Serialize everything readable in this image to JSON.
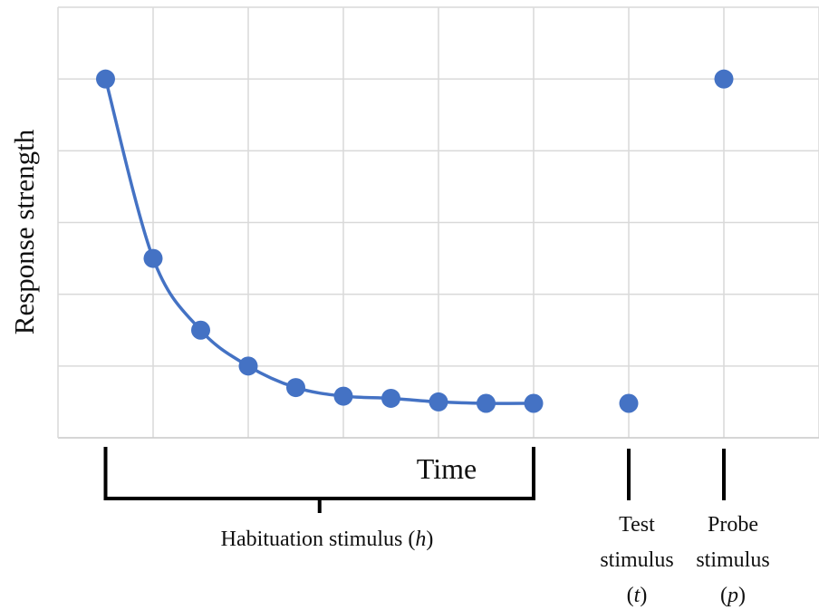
{
  "chart_data": {
    "type": "scatter",
    "title": "",
    "ylabel": "Response strength",
    "xlabel": "Time",
    "grid": true,
    "legend": "none",
    "ylim": [
      0,
      6
    ],
    "xlim": [
      0,
      8
    ],
    "series": [
      {
        "points": [
          {
            "x": 0.5,
            "y": 5.0
          },
          {
            "x": 1.0,
            "y": 2.5
          },
          {
            "x": 1.5,
            "y": 1.5
          },
          {
            "x": 2.0,
            "y": 1.0
          },
          {
            "x": 2.5,
            "y": 0.7
          },
          {
            "x": 3.0,
            "y": 0.58
          },
          {
            "x": 3.5,
            "y": 0.55
          },
          {
            "x": 4.0,
            "y": 0.5
          },
          {
            "x": 4.5,
            "y": 0.48
          },
          {
            "x": 5.0,
            "y": 0.48
          }
        ],
        "smooth_line": true
      },
      {
        "points": [
          {
            "x": 6.0,
            "y": 0.48
          },
          {
            "x": 7.0,
            "y": 5.0
          }
        ],
        "smooth_line": false
      }
    ],
    "annotations": {
      "habituation": {
        "text": "Habituation stimulus (",
        "italic": "h",
        "close": ")",
        "x_range": [
          0.5,
          5.0
        ]
      },
      "test": {
        "line1": "Test",
        "line2": "stimulus",
        "line3_open": "(",
        "italic": "t",
        "line3_close": ")",
        "x": 6.0
      },
      "probe": {
        "line1": "Probe",
        "line2": "stimulus",
        "line3_open": "(",
        "italic": "p",
        "line3_close": ")",
        "x": 7.0
      }
    },
    "colors": {
      "series": "#4472c4",
      "grid": "#d9d9d9",
      "axis": "#c9c9c9",
      "annotation": "#000000"
    }
  }
}
